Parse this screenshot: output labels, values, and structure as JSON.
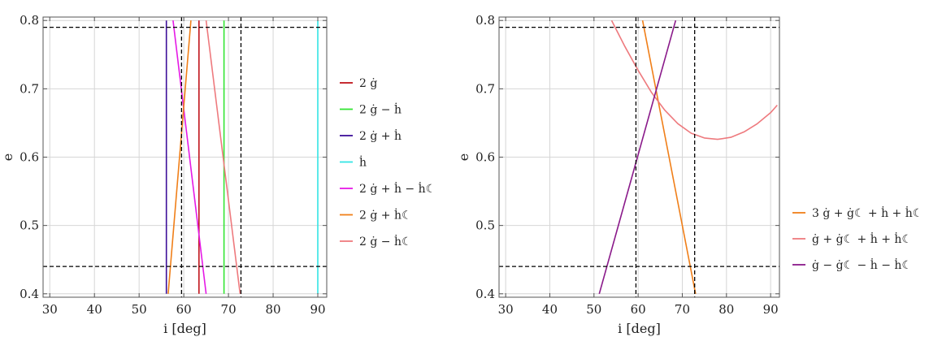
{
  "chart_data": [
    {
      "type": "line",
      "xlabel": "i [deg]",
      "ylabel": "e",
      "xlim": [
        28.5,
        92
      ],
      "ylim": [
        0.395,
        0.805
      ],
      "xticks": [
        30,
        40,
        50,
        60,
        70,
        80,
        90
      ],
      "yticks": [
        0.4,
        0.5,
        0.6,
        0.7,
        0.8
      ],
      "grid": true,
      "legend_position": "right",
      "series": [
        {
          "name": "2 ġ",
          "color": "#c0141c",
          "points": [
            [
              63.4,
              0.4
            ],
            [
              63.4,
              0.8
            ]
          ]
        },
        {
          "name": "2 ġ − ḣ",
          "color": "#33e533",
          "points": [
            [
              69.0,
              0.4
            ],
            [
              69.0,
              0.8
            ]
          ]
        },
        {
          "name": "2 ġ + ḣ",
          "color": "#3d0f99",
          "points": [
            [
              56.1,
              0.4
            ],
            [
              56.1,
              0.8
            ]
          ]
        },
        {
          "name": "ḣ",
          "color": "#33e5e5",
          "points": [
            [
              90.0,
              0.4
            ],
            [
              90.0,
              0.8
            ]
          ]
        },
        {
          "name": "2 ġ + ḣ − ḣ☾",
          "color": "#e519e5",
          "points": [
            [
              57.6,
              0.8
            ],
            [
              65.0,
              0.4
            ]
          ]
        },
        {
          "name": "2 ġ + ḣ☾",
          "color": "#f07f19",
          "points": [
            [
              56.5,
              0.4
            ],
            [
              61.6,
              0.8
            ]
          ]
        },
        {
          "name": "2 ġ − ḣ☾",
          "color": "#ee7a7e",
          "points": [
            [
              65.0,
              0.8
            ],
            [
              72.6,
              0.4
            ]
          ]
        }
      ],
      "reference_lines": {
        "e": [
          0.44,
          0.79
        ],
        "i": [
          59.5,
          72.8
        ]
      }
    },
    {
      "type": "line",
      "xlabel": "i [deg]",
      "ylabel": "e",
      "xlim": [
        28.5,
        92
      ],
      "ylim": [
        0.395,
        0.805
      ],
      "xticks": [
        30,
        40,
        50,
        60,
        70,
        80,
        90
      ],
      "yticks": [
        0.4,
        0.5,
        0.6,
        0.7,
        0.8
      ],
      "grid": true,
      "legend_position": "right",
      "series": [
        {
          "name": "3 ġ + ġ☾ + ḣ + ḣ☾",
          "color": "#f07f19",
          "points": [
            [
              61.0,
              0.8
            ],
            [
              73.0,
              0.4
            ]
          ]
        },
        {
          "name": "ġ + ġ☾ + ḣ + ḣ☾",
          "color": "#ee7a7e",
          "points": [
            [
              54.0,
              0.8
            ],
            [
              57.0,
              0.762
            ],
            [
              60.0,
              0.727
            ],
            [
              63.0,
              0.695
            ],
            [
              66.0,
              0.669
            ],
            [
              69.0,
              0.649
            ],
            [
              72.0,
              0.635
            ],
            [
              75.0,
              0.628
            ],
            [
              78.0,
              0.626
            ],
            [
              81.0,
              0.629
            ],
            [
              84.0,
              0.637
            ],
            [
              87.0,
              0.649
            ],
            [
              90.0,
              0.665
            ],
            [
              91.5,
              0.676
            ]
          ]
        },
        {
          "name": "ġ − ġ☾ − ḣ − ḣ☾",
          "color": "#8a1a8a",
          "points": [
            [
              51.2,
              0.4
            ],
            [
              68.5,
              0.8
            ]
          ]
        }
      ],
      "reference_lines": {
        "e": [
          0.44,
          0.79
        ],
        "i": [
          59.5,
          72.8
        ]
      }
    }
  ]
}
